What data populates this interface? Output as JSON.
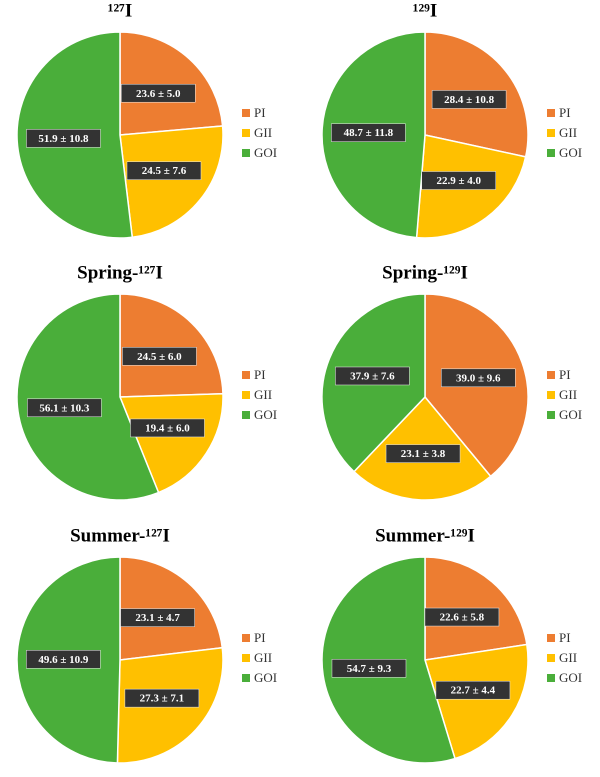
{
  "chart_data": [
    {
      "type": "pie",
      "title": "¹²⁷I",
      "categories": [
        "PI",
        "GII",
        "GOI"
      ],
      "colors": [
        "#ed7d31",
        "#ffc000",
        "#4aae3a"
      ],
      "values": [
        23.6,
        24.5,
        51.9
      ],
      "value_labels": [
        "23.6 ± 5.0",
        "24.5 ± 7.6",
        "51.9 ± 10.8"
      ],
      "legend": "right"
    },
    {
      "type": "pie",
      "title": "¹²⁹I",
      "categories": [
        "PI",
        "GII",
        "GOI"
      ],
      "colors": [
        "#ed7d31",
        "#ffc000",
        "#4aae3a"
      ],
      "values": [
        28.4,
        22.9,
        48.7
      ],
      "value_labels": [
        "28.4 ± 10.8",
        "22.9 ± 4.0",
        "48.7 ± 11.8"
      ],
      "legend": "right"
    },
    {
      "type": "pie",
      "title": "Spring-¹²⁷I",
      "categories": [
        "PI",
        "GII",
        "GOI"
      ],
      "colors": [
        "#ed7d31",
        "#ffc000",
        "#4aae3a"
      ],
      "values": [
        24.5,
        19.4,
        56.1
      ],
      "value_labels": [
        "24.5 ± 6.0",
        "19.4 ± 6.0",
        "56.1 ± 10.3"
      ],
      "legend": "right"
    },
    {
      "type": "pie",
      "title": "Spring-¹²⁹I",
      "categories": [
        "PI",
        "GII",
        "GOI"
      ],
      "colors": [
        "#ed7d31",
        "#ffc000",
        "#4aae3a"
      ],
      "values": [
        39.0,
        23.1,
        37.9
      ],
      "value_labels": [
        "39.0 ± 9.6",
        "23.1 ± 3.8",
        "37.9 ± 7.6"
      ],
      "legend": "right"
    },
    {
      "type": "pie",
      "title": "Summer-¹²⁷I",
      "categories": [
        "PI",
        "GII",
        "GOI"
      ],
      "colors": [
        "#ed7d31",
        "#ffc000",
        "#4aae3a"
      ],
      "values": [
        23.1,
        27.3,
        49.6
      ],
      "value_labels": [
        "23.1 ± 4.7",
        "27.3 ± 7.1",
        "49.6 ± 10.9"
      ],
      "legend": "right"
    },
    {
      "type": "pie",
      "title": "Summer-¹²⁹I",
      "categories": [
        "PI",
        "GII",
        "GOI"
      ],
      "colors": [
        "#ed7d31",
        "#ffc000",
        "#4aae3a"
      ],
      "values": [
        22.6,
        22.7,
        54.7
      ],
      "value_labels": [
        "22.6 ± 5.8",
        "22.7 ± 4.4",
        "54.7 ± 9.3"
      ],
      "legend": "right"
    }
  ]
}
